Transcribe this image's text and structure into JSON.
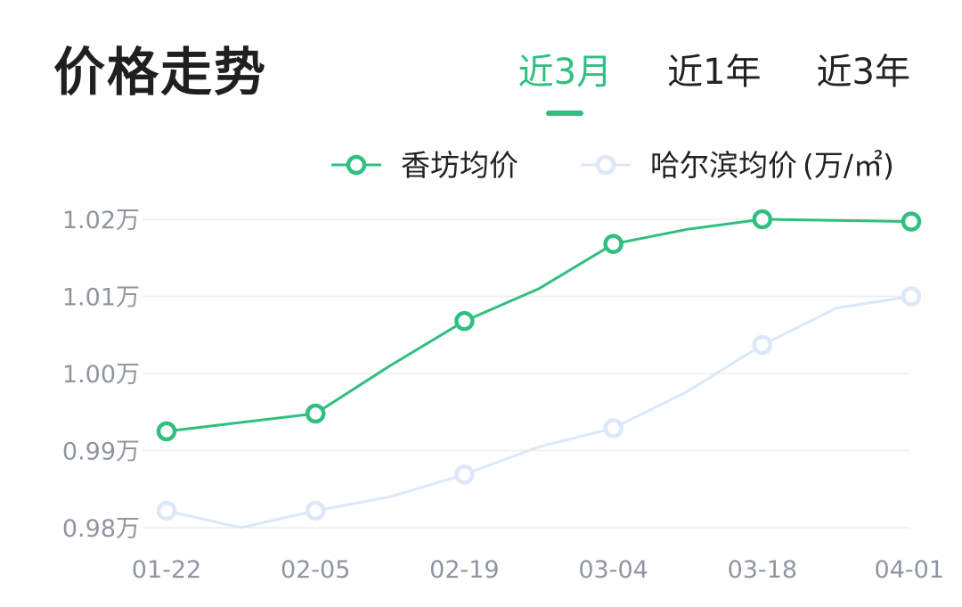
{
  "header": {
    "title": "价格走势",
    "tabs": [
      {
        "label": "近3月",
        "active": true
      },
      {
        "label": "近1年",
        "active": false
      },
      {
        "label": "近3年",
        "active": false
      }
    ]
  },
  "colors": {
    "primary": "#2fbf7f",
    "secondary": "#dce8f8",
    "grid": "#eeeeee",
    "tick": "#8f96a0"
  },
  "chart_data": {
    "type": "line",
    "title": "",
    "unit_label": "(万/㎡)",
    "x_ticks": [
      "01-22",
      "02-05",
      "02-19",
      "03-04",
      "03-18",
      "04-01"
    ],
    "y_ticks": [
      {
        "value": 1.02,
        "label": "1.02万"
      },
      {
        "value": 1.01,
        "label": "1.01万"
      },
      {
        "value": 1.0,
        "label": "1.00万"
      },
      {
        "value": 0.99,
        "label": "0.99万"
      },
      {
        "value": 0.98,
        "label": "0.98万"
      }
    ],
    "ylim": [
      0.98,
      1.02
    ],
    "grid": true,
    "legend_position": "top-right",
    "series": [
      {
        "name": "香坊均价",
        "color": "#2fbf7f",
        "points": [
          {
            "x": 0,
            "y": 0.9925,
            "marker": true
          },
          {
            "x": 1,
            "y": 0.9948,
            "marker": true
          },
          {
            "x": 1.5,
            "y": 1.001,
            "marker": false
          },
          {
            "x": 2,
            "y": 1.0068,
            "marker": true
          },
          {
            "x": 2.5,
            "y": 1.011,
            "marker": false
          },
          {
            "x": 3,
            "y": 1.0168,
            "marker": true
          },
          {
            "x": 3.5,
            "y": 1.0187,
            "marker": false
          },
          {
            "x": 4,
            "y": 1.02,
            "marker": true
          },
          {
            "x": 5,
            "y": 1.0197,
            "marker": true
          }
        ]
      },
      {
        "name": "哈尔滨均价",
        "color": "#dce8f8",
        "points": [
          {
            "x": 0,
            "y": 0.9822,
            "marker": true
          },
          {
            "x": 0.5,
            "y": 0.98,
            "marker": false
          },
          {
            "x": 1,
            "y": 0.9822,
            "marker": true
          },
          {
            "x": 1.5,
            "y": 0.984,
            "marker": false
          },
          {
            "x": 2,
            "y": 0.9869,
            "marker": true
          },
          {
            "x": 2.5,
            "y": 0.9905,
            "marker": false
          },
          {
            "x": 3,
            "y": 0.9929,
            "marker": true
          },
          {
            "x": 3.5,
            "y": 0.9977,
            "marker": false
          },
          {
            "x": 4,
            "y": 1.0037,
            "marker": true
          },
          {
            "x": 4.5,
            "y": 1.0085,
            "marker": false
          },
          {
            "x": 5,
            "y": 1.01,
            "marker": true
          }
        ]
      }
    ]
  }
}
